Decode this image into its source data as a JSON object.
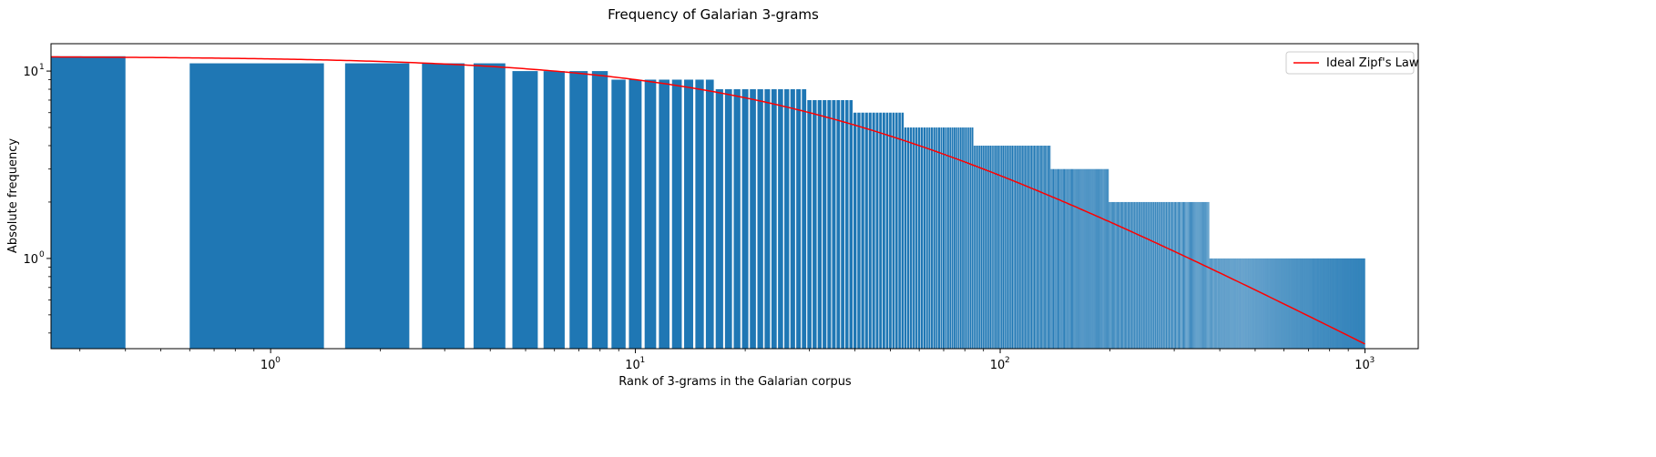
{
  "chart_data": {
    "type": "bar",
    "title": "Frequency of Galarian 3-grams",
    "xlabel": "Rank of 3-grams in the Galarian corpus",
    "ylabel": "Absolute frequency",
    "xscale": "log",
    "yscale": "log",
    "xlim": [
      0.25,
      1400
    ],
    "ylim": [
      0.33,
      14
    ],
    "x_ticks": [
      {
        "base": "10",
        "exp": "0"
      },
      {
        "base": "10",
        "exp": "1"
      },
      {
        "base": "10",
        "exp": "2"
      },
      {
        "base": "10",
        "exp": "3"
      }
    ],
    "y_ticks": [
      {
        "base": "10",
        "exp": "0"
      },
      {
        "base": "10",
        "exp": "1"
      }
    ],
    "bar_color": "#1f77b4",
    "bar_width": 0.8,
    "bars": [
      {
        "from_rank": 0,
        "to_rank": 0,
        "value": 12
      },
      {
        "from_rank": 1,
        "to_rank": 4,
        "value": 11
      },
      {
        "from_rank": 5,
        "to_rank": 8,
        "value": 10
      },
      {
        "from_rank": 9,
        "to_rank": 16,
        "value": 9
      },
      {
        "from_rank": 17,
        "to_rank": 29,
        "value": 8
      },
      {
        "from_rank": 30,
        "to_rank": 39,
        "value": 7
      },
      {
        "from_rank": 40,
        "to_rank": 54,
        "value": 6
      },
      {
        "from_rank": 55,
        "to_rank": 84,
        "value": 5
      },
      {
        "from_rank": 85,
        "to_rank": 137,
        "value": 4
      },
      {
        "from_rank": 138,
        "to_rank": 198,
        "value": 3
      },
      {
        "from_rank": 199,
        "to_rank": 374,
        "value": 2
      },
      {
        "from_rank": 375,
        "to_rank": 1000,
        "value": 1
      }
    ],
    "series": [
      {
        "name": "Ideal Zipf's Law",
        "color": "#ff0000",
        "formula": "12 / (1 + x/30)",
        "x_range": [
          0,
          1000
        ]
      }
    ],
    "legend": "top-right",
    "grid": false
  }
}
